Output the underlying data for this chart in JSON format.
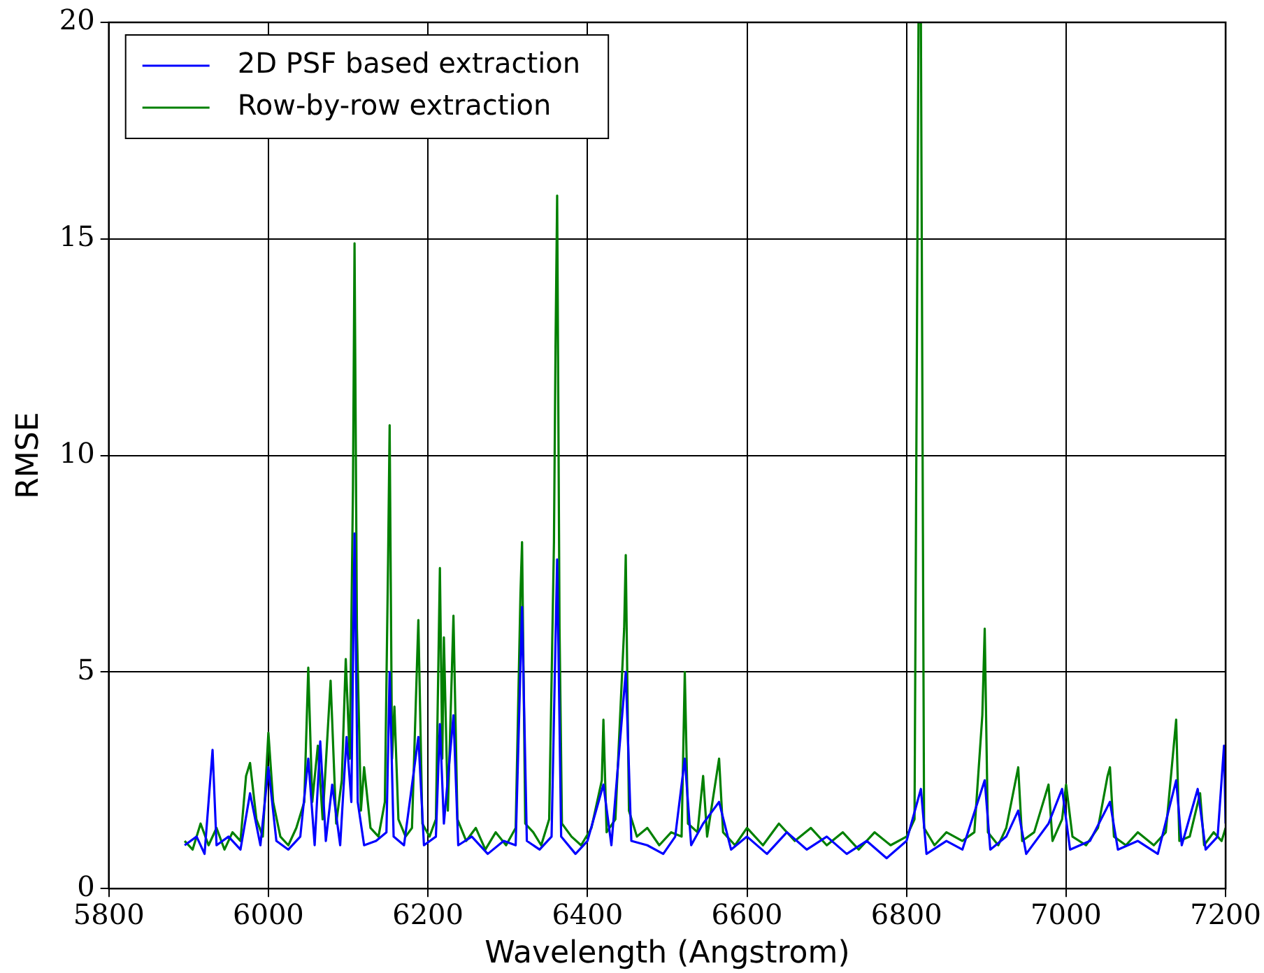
{
  "chart_data": {
    "type": "line",
    "xlabel": "Wavelength (Angstrom)",
    "ylabel": "RMSE",
    "xlim": [
      5800,
      7200
    ],
    "xticks": [
      5800,
      6000,
      6200,
      6400,
      6600,
      6800,
      7000,
      7200
    ],
    "ylim": [
      0,
      20
    ],
    "yticks": [
      0,
      5,
      10,
      15,
      20
    ],
    "grid": true,
    "legend": "top left",
    "marker": "none",
    "line_style": "solid",
    "series": [
      {
        "name": "2D PSF based extraction",
        "color": "#0000ff",
        "x": [
          5895,
          5910,
          5920,
          5930,
          5935,
          5950,
          5965,
          5977,
          5990,
          6000,
          6010,
          6025,
          6040,
          6050,
          6058,
          6065,
          6072,
          6080,
          6090,
          6098,
          6104,
          6108,
          6112,
          6120,
          6135,
          6148,
          6152,
          6157,
          6170,
          6188,
          6195,
          6210,
          6215,
          6220,
          6232,
          6238,
          6255,
          6275,
          6295,
          6310,
          6318,
          6324,
          6340,
          6355,
          6362,
          6367,
          6385,
          6400,
          6420,
          6430,
          6448,
          6455,
          6475,
          6495,
          6510,
          6522,
          6530,
          6545,
          6565,
          6580,
          6600,
          6625,
          6650,
          6675,
          6700,
          6725,
          6750,
          6775,
          6800,
          6818,
          6825,
          6850,
          6870,
          6898,
          6905,
          6925,
          6940,
          6950,
          6978,
          6995,
          7005,
          7030,
          7055,
          7065,
          7090,
          7115,
          7138,
          7145,
          7165,
          7175,
          7190,
          7198,
          7200
        ],
        "values": [
          1.0,
          1.2,
          0.8,
          3.2,
          1.0,
          1.2,
          0.9,
          2.2,
          1.0,
          2.8,
          1.1,
          0.9,
          1.2,
          3.0,
          1.0,
          3.4,
          1.1,
          2.4,
          1.0,
          3.5,
          2.0,
          8.2,
          2.0,
          1.0,
          1.1,
          1.3,
          5.0,
          1.2,
          1.0,
          3.5,
          1.0,
          1.2,
          3.8,
          1.5,
          4.0,
          1.0,
          1.2,
          0.8,
          1.1,
          1.0,
          6.5,
          1.1,
          0.9,
          1.2,
          7.6,
          1.2,
          0.8,
          1.1,
          2.4,
          1.0,
          5.0,
          1.1,
          1.0,
          0.8,
          1.2,
          3.0,
          1.0,
          1.5,
          2.0,
          0.9,
          1.2,
          0.8,
          1.3,
          0.9,
          1.2,
          0.8,
          1.1,
          0.7,
          1.1,
          2.3,
          0.8,
          1.1,
          0.9,
          2.5,
          0.9,
          1.2,
          1.8,
          0.8,
          1.5,
          2.3,
          0.9,
          1.1,
          2.0,
          0.9,
          1.1,
          0.8,
          2.5,
          1.0,
          2.3,
          0.9,
          1.2,
          3.3,
          1.5
        ]
      },
      {
        "name": "Row-by-row extraction",
        "color": "#008000",
        "x": [
          5895,
          5905,
          5915,
          5925,
          5935,
          5945,
          5955,
          5965,
          5972,
          5977,
          5985,
          5993,
          6000,
          6006,
          6015,
          6025,
          6035,
          6045,
          6050,
          6055,
          6062,
          6068,
          6078,
          6085,
          6092,
          6097,
          6102,
          6106,
          6108,
          6111,
          6116,
          6120,
          6128,
          6138,
          6146,
          6150,
          6152,
          6155,
          6158,
          6163,
          6172,
          6180,
          6188,
          6193,
          6202,
          6210,
          6215,
          6218,
          6220,
          6225,
          6232,
          6237,
          6248,
          6260,
          6272,
          6285,
          6298,
          6310,
          6316,
          6318,
          6322,
          6332,
          6342,
          6352,
          6358,
          6360,
          6362,
          6365,
          6368,
          6380,
          6392,
          6405,
          6418,
          6420,
          6424,
          6435,
          6446,
          6448,
          6452,
          6462,
          6475,
          6490,
          6505,
          6518,
          6522,
          6526,
          6538,
          6545,
          6550,
          6565,
          6570,
          6585,
          6600,
          6620,
          6640,
          6660,
          6680,
          6700,
          6720,
          6740,
          6760,
          6780,
          6800,
          6810,
          6815,
          6818,
          6822,
          6835,
          6850,
          6870,
          6885,
          6895,
          6898,
          6902,
          6915,
          6925,
          6940,
          6945,
          6960,
          6978,
          6983,
          6995,
          7000,
          7008,
          7025,
          7040,
          7052,
          7055,
          7060,
          7075,
          7090,
          7110,
          7125,
          7138,
          7142,
          7155,
          7168,
          7173,
          7185,
          7195,
          7200
        ],
        "values": [
          1.1,
          0.9,
          1.5,
          1.0,
          1.4,
          0.9,
          1.3,
          1.1,
          2.6,
          2.9,
          1.6,
          1.2,
          3.6,
          2.0,
          1.2,
          1.0,
          1.4,
          2.0,
          5.1,
          2.0,
          3.3,
          1.6,
          4.8,
          1.5,
          2.5,
          5.3,
          3.0,
          9.2,
          14.9,
          6.0,
          1.8,
          2.8,
          1.4,
          1.2,
          2.0,
          7.5,
          10.7,
          3.0,
          4.2,
          1.6,
          1.2,
          1.4,
          6.2,
          1.5,
          1.2,
          1.6,
          7.4,
          3.0,
          5.8,
          1.8,
          6.3,
          1.6,
          1.1,
          1.4,
          0.9,
          1.3,
          1.0,
          1.4,
          6.8,
          8.0,
          1.5,
          1.3,
          1.0,
          1.6,
          8.0,
          12.6,
          16.0,
          6.0,
          1.5,
          1.2,
          1.0,
          1.4,
          2.5,
          3.9,
          1.3,
          1.6,
          6.0,
          7.7,
          1.8,
          1.2,
          1.4,
          1.0,
          1.3,
          1.2,
          5.0,
          1.5,
          1.3,
          2.6,
          1.2,
          3.0,
          1.3,
          1.0,
          1.4,
          1.0,
          1.5,
          1.1,
          1.4,
          1.0,
          1.3,
          0.9,
          1.3,
          1.0,
          1.2,
          1.6,
          20,
          20,
          1.4,
          1.0,
          1.3,
          1.1,
          1.3,
          4.0,
          6.0,
          1.3,
          1.0,
          1.4,
          2.8,
          1.1,
          1.3,
          2.4,
          1.1,
          1.6,
          2.4,
          1.2,
          1.0,
          1.4,
          2.6,
          2.8,
          1.2,
          1.0,
          1.3,
          1.0,
          1.3,
          3.9,
          1.1,
          1.2,
          2.2,
          1.0,
          1.3,
          1.1,
          1.4
        ]
      }
    ]
  }
}
